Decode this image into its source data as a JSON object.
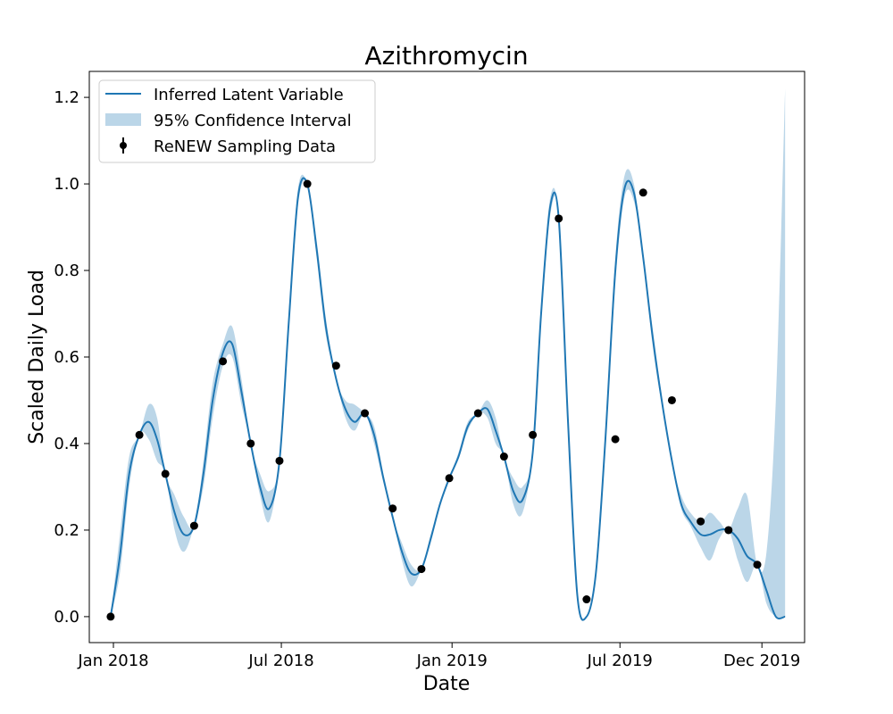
{
  "chart_data": {
    "type": "line",
    "title": "Azithromycin",
    "xlabel": "Date",
    "ylabel": "Scaled Daily Load",
    "x_axis": {
      "type": "date",
      "range": [
        "2017-12-06",
        "2020-01-16"
      ],
      "ticks": [
        {
          "date": "2018-01-01",
          "label": "Jan 2018"
        },
        {
          "date": "2018-07-01",
          "label": "Jul 2018"
        },
        {
          "date": "2019-01-01",
          "label": "Jan 2019"
        },
        {
          "date": "2019-07-01",
          "label": "Jul 2019"
        },
        {
          "date": "2019-12-01",
          "label": "Dec 2019"
        }
      ]
    },
    "y_axis": {
      "range": [
        -0.06,
        1.26
      ],
      "ticks": [
        0.0,
        0.2,
        0.4,
        0.6,
        0.8,
        1.0,
        1.2
      ],
      "tick_labels": [
        "0.0",
        "0.2",
        "0.4",
        "0.6",
        "0.8",
        "1.0",
        "1.2"
      ]
    },
    "grid": false,
    "legend": {
      "position": "top-left",
      "entries": [
        {
          "label": "Inferred Latent Variable",
          "kind": "line"
        },
        {
          "label": "95% Confidence Interval",
          "kind": "band"
        },
        {
          "label": "ReNEW Sampling Data",
          "kind": "errorbar-marker"
        }
      ]
    },
    "colors": {
      "line": "#1f77b4",
      "band": "#1f77b4",
      "band_opacity": 0.3,
      "points": "#000000"
    },
    "series": [
      {
        "name": "ReNEW Sampling Data",
        "kind": "points",
        "x": [
          "2017-12-29",
          "2018-01-29",
          "2018-02-26",
          "2018-03-29",
          "2018-04-29",
          "2018-05-29",
          "2018-06-29",
          "2018-07-29",
          "2018-08-29",
          "2018-09-29",
          "2018-10-29",
          "2018-11-29",
          "2018-12-29",
          "2019-01-29",
          "2019-02-26",
          "2019-03-29",
          "2019-04-26",
          "2019-05-26",
          "2019-06-26",
          "2019-07-26",
          "2019-08-26",
          "2019-09-26",
          "2019-10-26",
          "2019-11-26"
        ],
        "y": [
          0.0,
          0.42,
          0.33,
          0.21,
          0.59,
          0.4,
          0.36,
          1.0,
          0.58,
          0.47,
          0.25,
          0.11,
          0.32,
          0.47,
          0.37,
          0.42,
          0.92,
          0.04,
          0.41,
          0.98,
          0.5,
          0.22,
          0.2,
          0.12
        ]
      },
      {
        "name": "Inferred Latent Variable",
        "kind": "line",
        "x": [
          "2017-12-29",
          "2018-01-08",
          "2018-01-18",
          "2018-01-29",
          "2018-02-08",
          "2018-02-17",
          "2018-02-26",
          "2018-03-08",
          "2018-03-18",
          "2018-03-29",
          "2018-04-08",
          "2018-04-18",
          "2018-04-29",
          "2018-05-09",
          "2018-05-19",
          "2018-05-29",
          "2018-06-08",
          "2018-06-18",
          "2018-06-29",
          "2018-07-09",
          "2018-07-19",
          "2018-07-29",
          "2018-08-08",
          "2018-08-18",
          "2018-08-29",
          "2018-09-08",
          "2018-09-18",
          "2018-09-29",
          "2018-10-09",
          "2018-10-19",
          "2018-10-29",
          "2018-11-08",
          "2018-11-18",
          "2018-11-29",
          "2018-12-09",
          "2018-12-19",
          "2018-12-29",
          "2019-01-08",
          "2019-01-18",
          "2019-01-29",
          "2019-02-08",
          "2019-02-17",
          "2019-02-26",
          "2019-03-08",
          "2019-03-18",
          "2019-03-29",
          "2019-04-07",
          "2019-04-17",
          "2019-04-26",
          "2019-05-06",
          "2019-05-16",
          "2019-05-26",
          "2019-06-05",
          "2019-06-15",
          "2019-06-26",
          "2019-07-06",
          "2019-07-16",
          "2019-07-26",
          "2019-08-05",
          "2019-08-15",
          "2019-08-26",
          "2019-09-05",
          "2019-09-15",
          "2019-09-26",
          "2019-10-06",
          "2019-10-16",
          "2019-10-26",
          "2019-11-05",
          "2019-11-15",
          "2019-11-26",
          "2019-12-06",
          "2019-12-16",
          "2019-12-26"
        ],
        "y": [
          0.0,
          0.14,
          0.33,
          0.42,
          0.45,
          0.41,
          0.33,
          0.24,
          0.19,
          0.21,
          0.33,
          0.5,
          0.61,
          0.63,
          0.52,
          0.4,
          0.3,
          0.25,
          0.36,
          0.68,
          0.97,
          1.0,
          0.85,
          0.67,
          0.55,
          0.48,
          0.45,
          0.47,
          0.42,
          0.32,
          0.23,
          0.15,
          0.1,
          0.11,
          0.18,
          0.26,
          0.32,
          0.37,
          0.44,
          0.47,
          0.48,
          0.43,
          0.37,
          0.29,
          0.27,
          0.38,
          0.7,
          0.95,
          0.92,
          0.45,
          0.05,
          0.0,
          0.1,
          0.4,
          0.8,
          0.99,
          0.98,
          0.83,
          0.65,
          0.5,
          0.36,
          0.26,
          0.22,
          0.19,
          0.19,
          0.2,
          0.2,
          0.18,
          0.14,
          0.12,
          0.06,
          0.0,
          0.0
        ]
      },
      {
        "name": "95% Confidence Interval",
        "kind": "band",
        "x": [
          "2017-12-29",
          "2018-01-08",
          "2018-01-18",
          "2018-01-29",
          "2018-02-08",
          "2018-02-17",
          "2018-02-26",
          "2018-03-08",
          "2018-03-18",
          "2018-03-29",
          "2018-04-08",
          "2018-04-18",
          "2018-04-29",
          "2018-05-09",
          "2018-05-19",
          "2018-05-29",
          "2018-06-08",
          "2018-06-18",
          "2018-06-29",
          "2018-07-09",
          "2018-07-19",
          "2018-07-29",
          "2018-08-08",
          "2018-08-18",
          "2018-08-29",
          "2018-09-08",
          "2018-09-18",
          "2018-09-29",
          "2018-10-09",
          "2018-10-19",
          "2018-10-29",
          "2018-11-08",
          "2018-11-18",
          "2018-11-29",
          "2018-12-09",
          "2018-12-19",
          "2018-12-29",
          "2019-01-08",
          "2019-01-18",
          "2019-01-29",
          "2019-02-08",
          "2019-02-17",
          "2019-02-26",
          "2019-03-08",
          "2019-03-18",
          "2019-03-29",
          "2019-04-07",
          "2019-04-17",
          "2019-04-26",
          "2019-05-06",
          "2019-05-16",
          "2019-05-26",
          "2019-06-05",
          "2019-06-15",
          "2019-06-26",
          "2019-07-06",
          "2019-07-16",
          "2019-07-26",
          "2019-08-05",
          "2019-08-15",
          "2019-08-26",
          "2019-09-05",
          "2019-09-15",
          "2019-09-26",
          "2019-10-06",
          "2019-10-16",
          "2019-10-26",
          "2019-11-05",
          "2019-11-15",
          "2019-11-26",
          "2019-12-06",
          "2019-12-16",
          "2019-12-26"
        ],
        "lower": [
          0.0,
          0.1,
          0.3,
          0.42,
          0.41,
          0.36,
          0.33,
          0.2,
          0.15,
          0.21,
          0.3,
          0.46,
          0.58,
          0.6,
          0.49,
          0.4,
          0.28,
          0.22,
          0.36,
          0.66,
          0.95,
          1.0,
          0.83,
          0.65,
          0.55,
          0.46,
          0.43,
          0.47,
          0.4,
          0.31,
          0.23,
          0.13,
          0.07,
          0.11,
          0.17,
          0.26,
          0.32,
          0.37,
          0.43,
          0.47,
          0.46,
          0.4,
          0.37,
          0.26,
          0.24,
          0.38,
          0.68,
          0.93,
          0.92,
          0.43,
          0.04,
          0.0,
          0.09,
          0.38,
          0.77,
          0.97,
          0.96,
          0.83,
          0.63,
          0.49,
          0.36,
          0.25,
          0.21,
          0.16,
          0.13,
          0.18,
          0.2,
          0.13,
          0.08,
          0.12,
          0.03,
          0.0,
          0.0
        ],
        "upper": [
          0.0,
          0.19,
          0.37,
          0.42,
          0.49,
          0.46,
          0.33,
          0.28,
          0.23,
          0.21,
          0.36,
          0.54,
          0.63,
          0.67,
          0.55,
          0.4,
          0.33,
          0.29,
          0.36,
          0.7,
          0.99,
          1.0,
          0.87,
          0.69,
          0.55,
          0.5,
          0.49,
          0.47,
          0.44,
          0.33,
          0.23,
          0.17,
          0.12,
          0.11,
          0.19,
          0.26,
          0.32,
          0.38,
          0.45,
          0.47,
          0.5,
          0.46,
          0.37,
          0.32,
          0.3,
          0.38,
          0.72,
          0.97,
          0.92,
          0.47,
          0.06,
          0.0,
          0.11,
          0.42,
          0.83,
          1.02,
          1.0,
          0.83,
          0.67,
          0.51,
          0.36,
          0.28,
          0.24,
          0.22,
          0.24,
          0.22,
          0.2,
          0.25,
          0.28,
          0.12,
          0.15,
          0.5,
          1.22
        ]
      }
    ]
  }
}
